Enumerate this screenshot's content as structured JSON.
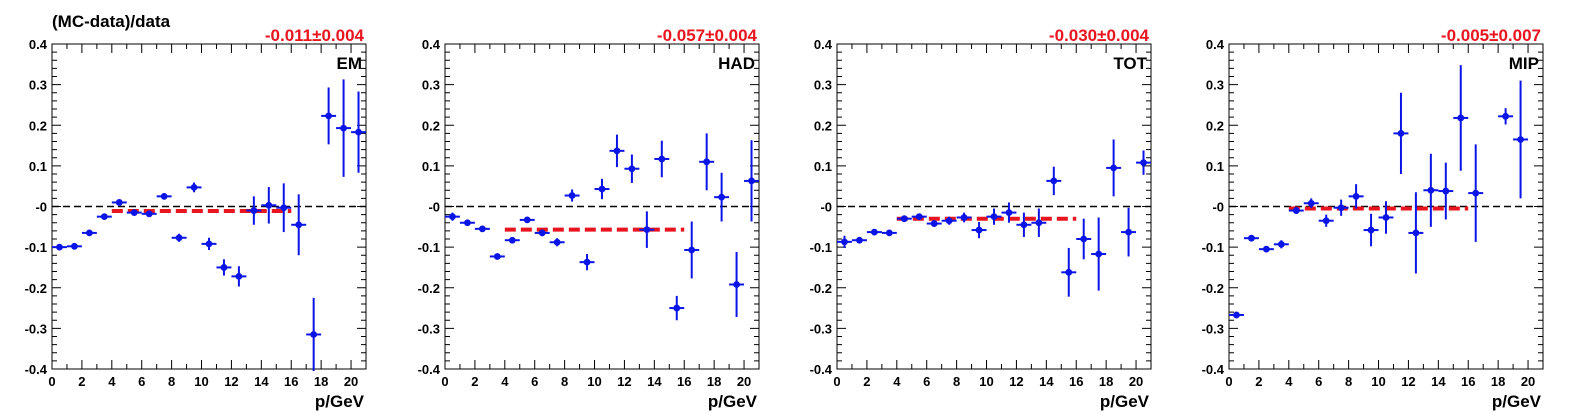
{
  "figure": {
    "ylabel": "(MC-data)/data",
    "xlabel": "p/GeV"
  },
  "chart_data": [
    {
      "type": "scatter",
      "name": "EM",
      "fit_label": "-0.011±0.004",
      "fit_value": -0.011,
      "fit_range": [
        4,
        16
      ],
      "xlim": [
        0,
        21
      ],
      "ylim": [
        -0.4,
        0.4
      ],
      "xticks": [
        0,
        2,
        4,
        6,
        8,
        10,
        12,
        14,
        16,
        18,
        20
      ],
      "yticks": [
        -0.4,
        -0.3,
        -0.2,
        -0.1,
        0,
        0.1,
        0.2,
        0.3,
        0.4
      ],
      "ytick_labels": [
        "-0.4",
        "-0.3",
        "-0.2",
        "-0.1",
        "-0",
        "0.1",
        "0.2",
        "0.3",
        "0.4"
      ],
      "points": [
        {
          "x": 0.5,
          "y": -0.1,
          "err": 0.004
        },
        {
          "x": 1.5,
          "y": -0.098,
          "err": 0.004
        },
        {
          "x": 2.5,
          "y": -0.065,
          "err": 0.004
        },
        {
          "x": 3.5,
          "y": -0.025,
          "err": 0.004
        },
        {
          "x": 4.5,
          "y": 0.01,
          "err": 0.005
        },
        {
          "x": 5.5,
          "y": -0.015,
          "err": 0.005
        },
        {
          "x": 6.5,
          "y": -0.018,
          "err": 0.006
        },
        {
          "x": 7.5,
          "y": 0.025,
          "err": 0.008
        },
        {
          "x": 8.5,
          "y": -0.077,
          "err": 0.01
        },
        {
          "x": 9.5,
          "y": 0.047,
          "err": 0.012
        },
        {
          "x": 10.5,
          "y": -0.092,
          "err": 0.015
        },
        {
          "x": 11.5,
          "y": -0.15,
          "err": 0.02
        },
        {
          "x": 12.5,
          "y": -0.172,
          "err": 0.025
        },
        {
          "x": 13.5,
          "y": -0.01,
          "err": 0.035
        },
        {
          "x": 14.5,
          "y": 0.003,
          "err": 0.045
        },
        {
          "x": 15.5,
          "y": -0.003,
          "err": 0.06
        },
        {
          "x": 16.5,
          "y": -0.045,
          "err": 0.075
        },
        {
          "x": 17.5,
          "y": -0.315,
          "err": 0.09
        },
        {
          "x": 18.5,
          "y": 0.223,
          "err": 0.07
        },
        {
          "x": 19.5,
          "y": 0.193,
          "err": 0.12
        },
        {
          "x": 20.5,
          "y": 0.183,
          "err": 0.1
        }
      ]
    },
    {
      "type": "scatter",
      "name": "HAD",
      "fit_label": "-0.057±0.004",
      "fit_value": -0.057,
      "fit_range": [
        4,
        16
      ],
      "xlim": [
        0,
        21
      ],
      "ylim": [
        -0.4,
        0.4
      ],
      "xticks": [
        0,
        2,
        4,
        6,
        8,
        10,
        12,
        14,
        16,
        18,
        20
      ],
      "yticks": [
        -0.4,
        -0.3,
        -0.2,
        -0.1,
        0,
        0.1,
        0.2,
        0.3,
        0.4
      ],
      "ytick_labels": [
        "-0.4",
        "-0.3",
        "-0.2",
        "-0.1",
        "-0",
        "0.1",
        "0.2",
        "0.3",
        "0.4"
      ],
      "points": [
        {
          "x": 0.5,
          "y": -0.025,
          "err": 0.01
        },
        {
          "x": 1.5,
          "y": -0.04,
          "err": 0.006
        },
        {
          "x": 2.5,
          "y": -0.055,
          "err": 0.005
        },
        {
          "x": 3.5,
          "y": -0.123,
          "err": 0.005
        },
        {
          "x": 4.5,
          "y": -0.083,
          "err": 0.006
        },
        {
          "x": 5.5,
          "y": -0.033,
          "err": 0.007
        },
        {
          "x": 6.5,
          "y": -0.065,
          "err": 0.008
        },
        {
          "x": 7.5,
          "y": -0.088,
          "err": 0.01
        },
        {
          "x": 8.5,
          "y": 0.027,
          "err": 0.015
        },
        {
          "x": 9.5,
          "y": -0.137,
          "err": 0.02
        },
        {
          "x": 10.5,
          "y": 0.043,
          "err": 0.025
        },
        {
          "x": 11.5,
          "y": 0.137,
          "err": 0.04
        },
        {
          "x": 12.5,
          "y": 0.093,
          "err": 0.035
        },
        {
          "x": 13.5,
          "y": -0.057,
          "err": 0.045
        },
        {
          "x": 14.5,
          "y": 0.117,
          "err": 0.045
        },
        {
          "x": 15.5,
          "y": -0.25,
          "err": 0.03
        },
        {
          "x": 16.5,
          "y": -0.107,
          "err": 0.07
        },
        {
          "x": 17.5,
          "y": 0.11,
          "err": 0.07
        },
        {
          "x": 18.5,
          "y": 0.023,
          "err": 0.06
        },
        {
          "x": 19.5,
          "y": -0.192,
          "err": 0.08
        },
        {
          "x": 20.5,
          "y": 0.063,
          "err": 0.1
        }
      ]
    },
    {
      "type": "scatter",
      "name": "TOT",
      "fit_label": "-0.030±0.004",
      "fit_value": -0.03,
      "fit_range": [
        4,
        16
      ],
      "xlim": [
        0,
        21
      ],
      "ylim": [
        -0.4,
        0.4
      ],
      "xticks": [
        0,
        2,
        4,
        6,
        8,
        10,
        12,
        14,
        16,
        18,
        20
      ],
      "yticks": [
        -0.4,
        -0.3,
        -0.2,
        -0.1,
        0,
        0.1,
        0.2,
        0.3,
        0.4
      ],
      "ytick_labels": [
        "-0.4",
        "-0.3",
        "-0.2",
        "-0.1",
        "-0",
        "0.1",
        "0.2",
        "0.3",
        "0.4"
      ],
      "points": [
        {
          "x": 0.5,
          "y": -0.087,
          "err": 0.015
        },
        {
          "x": 1.5,
          "y": -0.083,
          "err": 0.008
        },
        {
          "x": 2.5,
          "y": -0.063,
          "err": 0.005
        },
        {
          "x": 3.5,
          "y": -0.065,
          "err": 0.005
        },
        {
          "x": 4.5,
          "y": -0.03,
          "err": 0.005
        },
        {
          "x": 5.5,
          "y": -0.025,
          "err": 0.006
        },
        {
          "x": 6.5,
          "y": -0.042,
          "err": 0.007
        },
        {
          "x": 7.5,
          "y": -0.035,
          "err": 0.01
        },
        {
          "x": 8.5,
          "y": -0.027,
          "err": 0.012
        },
        {
          "x": 9.5,
          "y": -0.058,
          "err": 0.02
        },
        {
          "x": 10.5,
          "y": -0.025,
          "err": 0.02
        },
        {
          "x": 11.5,
          "y": -0.015,
          "err": 0.025
        },
        {
          "x": 12.5,
          "y": -0.045,
          "err": 0.03
        },
        {
          "x": 13.5,
          "y": -0.04,
          "err": 0.035
        },
        {
          "x": 14.5,
          "y": 0.063,
          "err": 0.035
        },
        {
          "x": 15.5,
          "y": -0.162,
          "err": 0.06
        },
        {
          "x": 16.5,
          "y": -0.08,
          "err": 0.05
        },
        {
          "x": 17.5,
          "y": -0.117,
          "err": 0.09
        },
        {
          "x": 18.5,
          "y": 0.095,
          "err": 0.07
        },
        {
          "x": 19.5,
          "y": -0.063,
          "err": 0.06
        },
        {
          "x": 20.5,
          "y": 0.108,
          "err": 0.03
        }
      ]
    },
    {
      "type": "scatter",
      "name": "MIP",
      "fit_label": "-0.005±0.007",
      "fit_value": -0.005,
      "fit_range": [
        4,
        16
      ],
      "xlim": [
        0,
        21
      ],
      "ylim": [
        -0.4,
        0.4
      ],
      "xticks": [
        0,
        2,
        4,
        6,
        8,
        10,
        12,
        14,
        16,
        18,
        20
      ],
      "yticks": [
        -0.4,
        -0.3,
        -0.2,
        -0.1,
        0,
        0.1,
        0.2,
        0.3,
        0.4
      ],
      "ytick_labels": [
        "-0.4",
        "-0.3",
        "-0.2",
        "-0.1",
        "-0",
        "0.1",
        "0.2",
        "0.3",
        "0.4"
      ],
      "points": [
        {
          "x": 0.5,
          "y": -0.267,
          "err": 0.008
        },
        {
          "x": 1.5,
          "y": -0.078,
          "err": 0.006
        },
        {
          "x": 2.5,
          "y": -0.105,
          "err": 0.006
        },
        {
          "x": 3.5,
          "y": -0.093,
          "err": 0.01
        },
        {
          "x": 4.5,
          "y": -0.01,
          "err": 0.008
        },
        {
          "x": 5.5,
          "y": 0.008,
          "err": 0.012
        },
        {
          "x": 6.5,
          "y": -0.035,
          "err": 0.015
        },
        {
          "x": 7.5,
          "y": -0.003,
          "err": 0.02
        },
        {
          "x": 8.5,
          "y": 0.025,
          "err": 0.03
        },
        {
          "x": 9.5,
          "y": -0.058,
          "err": 0.04
        },
        {
          "x": 10.5,
          "y": -0.027,
          "err": 0.04
        },
        {
          "x": 11.5,
          "y": 0.18,
          "err": 0.1
        },
        {
          "x": 12.5,
          "y": -0.065,
          "err": 0.1
        },
        {
          "x": 13.5,
          "y": 0.04,
          "err": 0.09
        },
        {
          "x": 14.5,
          "y": 0.038,
          "err": 0.07
        },
        {
          "x": 15.5,
          "y": 0.218,
          "err": 0.13
        },
        {
          "x": 16.5,
          "y": 0.033,
          "err": 0.12
        },
        {
          "x": 18.5,
          "y": 0.222,
          "err": 0.02
        },
        {
          "x": 19.5,
          "y": 0.165,
          "err": 0.145
        }
      ]
    }
  ]
}
